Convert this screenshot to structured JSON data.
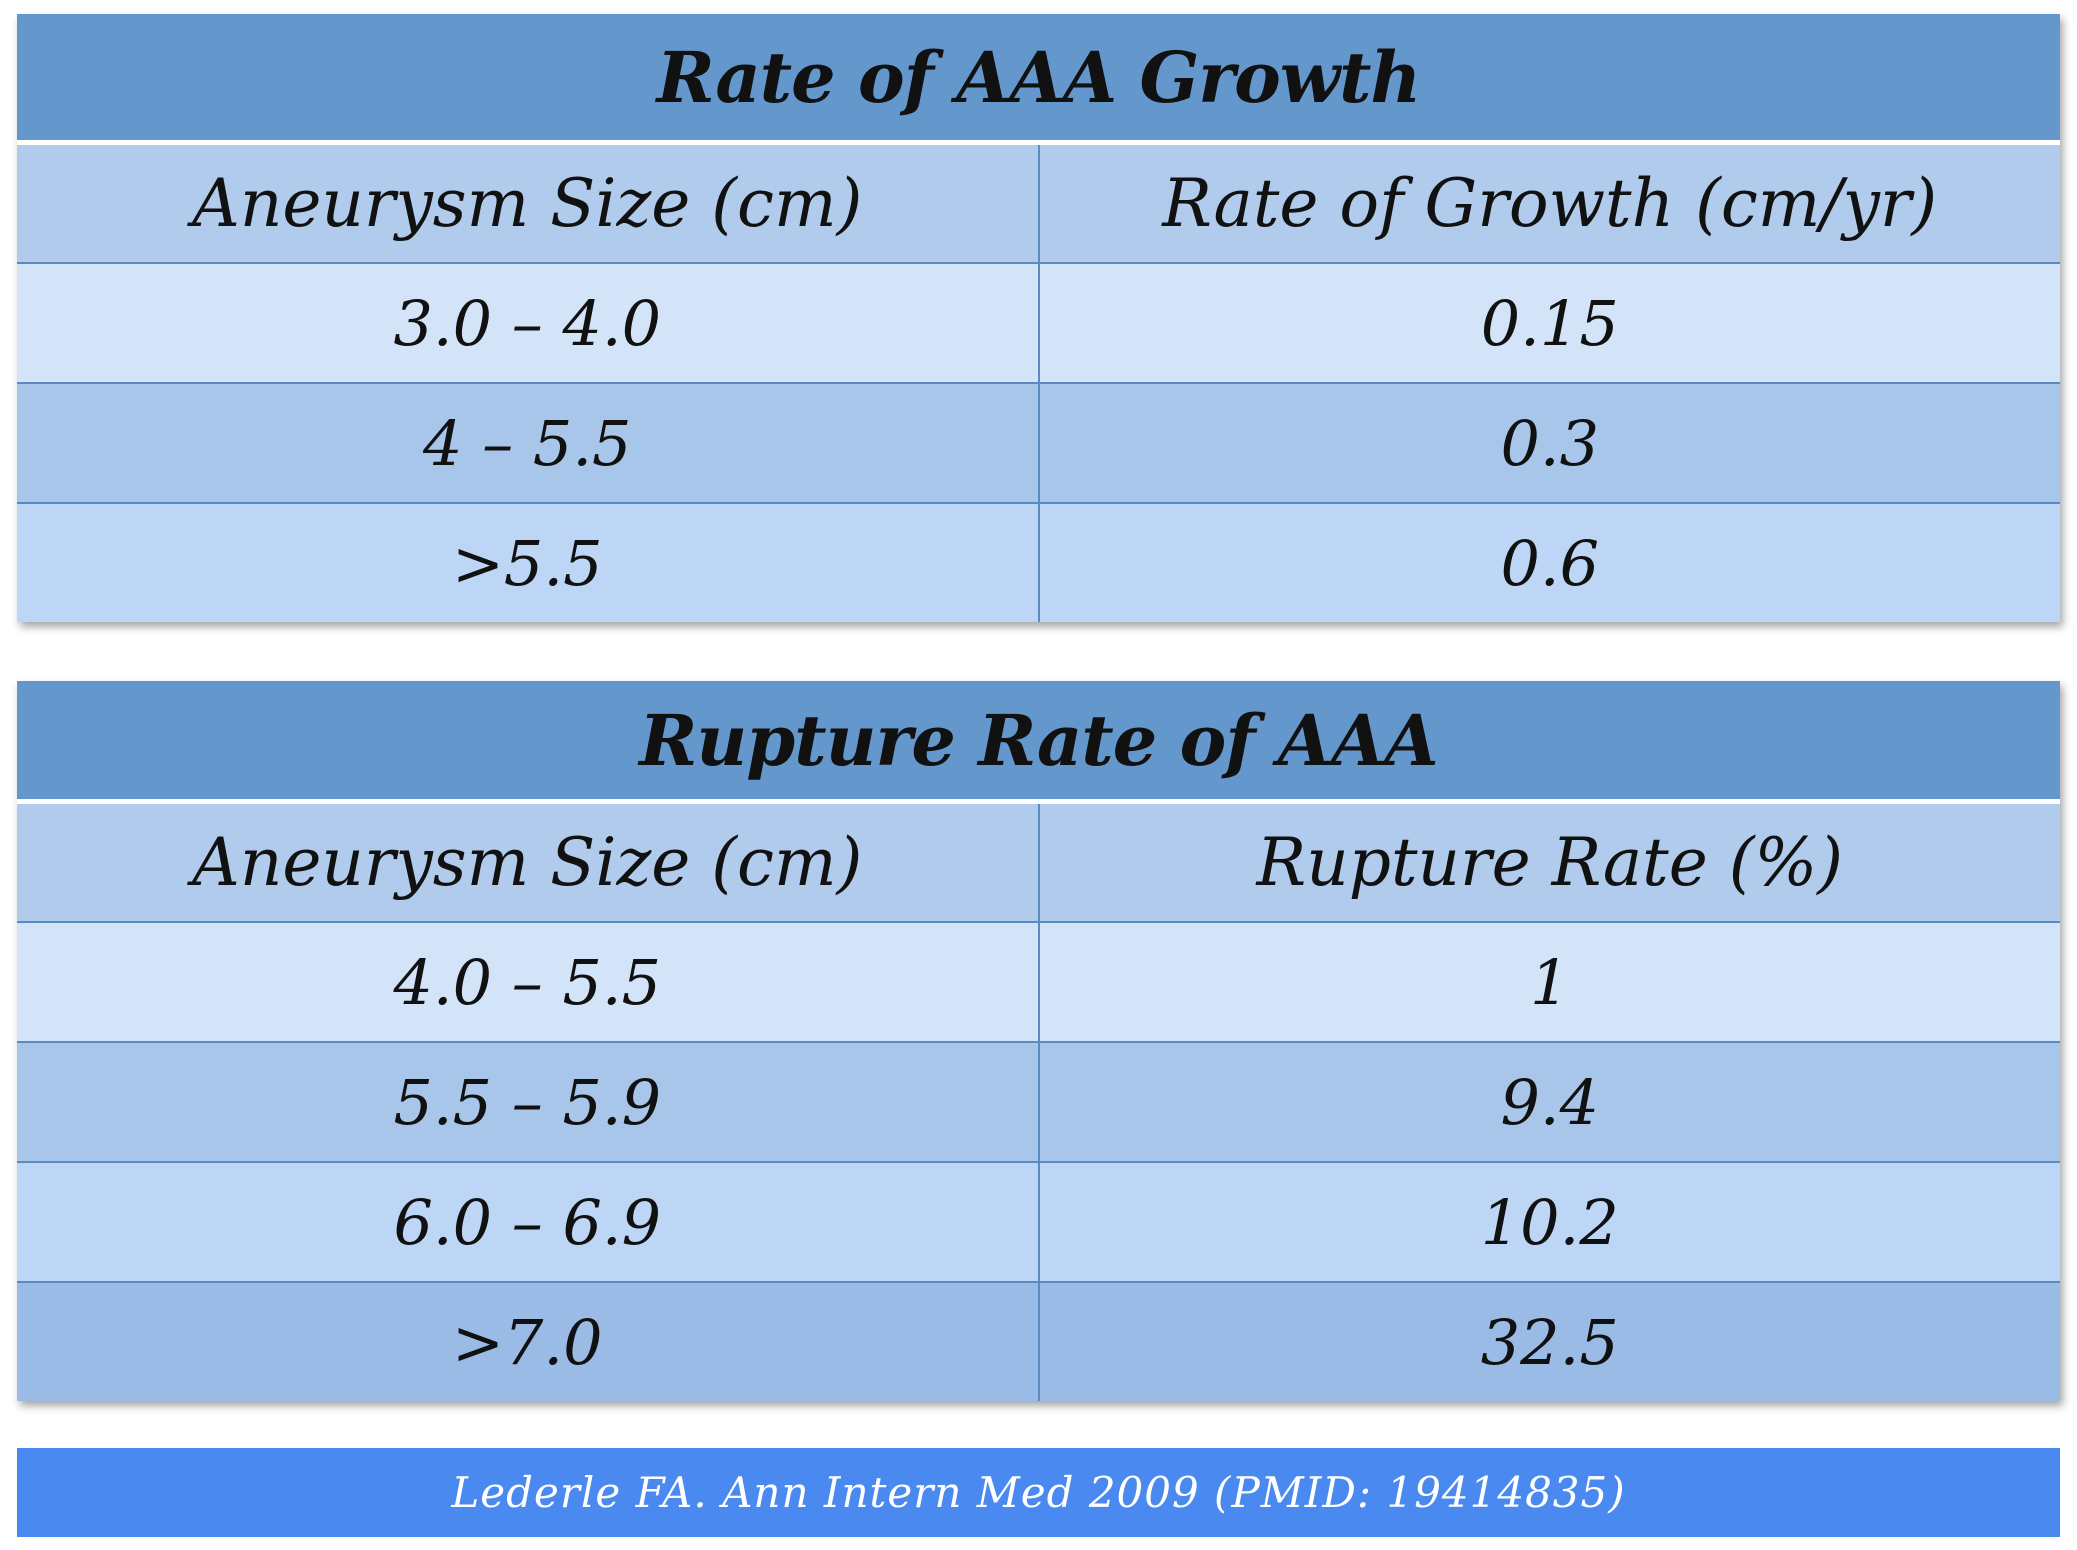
{
  "growth_table": {
    "title": "Rate of AAA Growth",
    "headers": [
      "Aneurysm Size (cm)",
      "Rate of Growth (cm/yr)"
    ],
    "rows": [
      [
        "3.0 – 4.0",
        "0.15"
      ],
      [
        "4 – 5.5",
        "0.3"
      ],
      [
        ">5.5",
        "0.6"
      ]
    ]
  },
  "rupture_table": {
    "title": "Rupture Rate of AAA",
    "headers": [
      "Aneurysm Size (cm)",
      "Rupture Rate (%)"
    ],
    "rows": [
      [
        "4.0 – 5.5",
        "1"
      ],
      [
        "5.5 – 5.9",
        "9.4"
      ],
      [
        "6.0 – 6.9",
        "10.2"
      ],
      [
        ">7.0",
        "32.5"
      ]
    ]
  },
  "citation": "Lederle FA.  Ann Intern Med 2009 (PMID: 19414835)",
  "colors": {
    "title_bar": "#6497cc",
    "header_row": "#b0cbeb",
    "citation_bar": "#4a89f0"
  }
}
